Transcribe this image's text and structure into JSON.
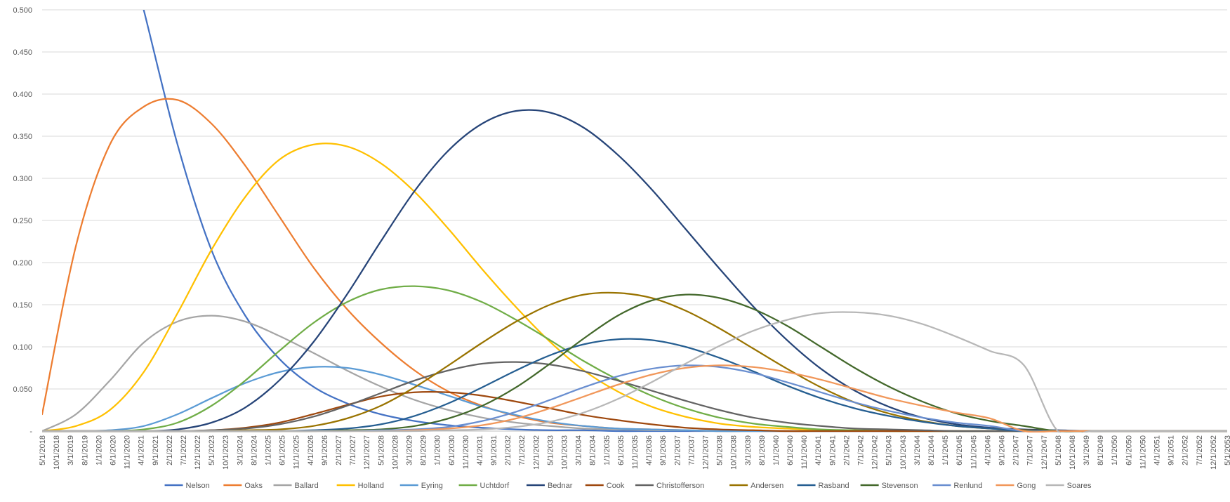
{
  "chart_data": {
    "type": "line",
    "title": "",
    "xlabel": "",
    "ylabel": "",
    "ylim": [
      0,
      0.5
    ],
    "yticks": [
      "-",
      "0.050",
      "0.100",
      "0.150",
      "0.200",
      "0.250",
      "0.300",
      "0.350",
      "0.400",
      "0.450",
      "0.500"
    ],
    "grid": "horizontal",
    "legend": "bottom",
    "xticks": [
      "5/1/2018",
      "10/1/2018",
      "3/1/2019",
      "8/1/2019",
      "1/1/2020",
      "6/1/2020",
      "11/1/2020",
      "4/1/2021",
      "9/1/2021",
      "2/1/2022",
      "7/1/2022",
      "12/1/2022",
      "5/1/2023",
      "10/1/2023",
      "3/1/2024",
      "8/1/2024",
      "1/1/2025",
      "6/1/2025",
      "11/1/2025",
      "4/1/2026",
      "9/1/2026",
      "2/1/2027",
      "7/1/2027",
      "12/1/2027",
      "5/1/2028",
      "10/1/2028",
      "3/1/2029",
      "8/1/2029",
      "1/1/2030",
      "6/1/2030",
      "11/1/2030",
      "4/1/2031",
      "9/1/2031",
      "2/1/2032",
      "7/1/2032",
      "12/1/2032",
      "5/1/2033",
      "10/1/2033",
      "3/1/2034",
      "8/1/2034",
      "1/1/2035",
      "6/1/2035",
      "11/1/2035",
      "4/1/2036",
      "9/1/2036",
      "2/1/2037",
      "7/1/2037",
      "12/1/2037",
      "5/1/2038",
      "10/1/2038",
      "3/1/2039",
      "8/1/2039",
      "1/1/2040",
      "6/1/2040",
      "11/1/2040",
      "4/1/2041",
      "9/1/2041",
      "2/1/2042",
      "7/1/2042",
      "12/1/2042",
      "5/1/2043",
      "10/1/2043",
      "3/1/2044",
      "8/1/2044",
      "1/1/2045",
      "6/1/2045",
      "11/1/2045",
      "4/1/2046",
      "9/1/2046",
      "2/1/2047",
      "7/1/2047",
      "12/1/2047",
      "5/1/2048",
      "10/1/2048",
      "3/1/2049",
      "8/1/2049",
      "1/1/2050",
      "6/1/2050",
      "11/1/2050",
      "4/1/2051",
      "9/1/2051",
      "2/1/2052",
      "7/1/2052",
      "12/1/2052",
      "5/1/2053"
    ],
    "x": [
      "5/1/2018",
      "5/1/2019",
      "5/1/2020",
      "5/1/2021",
      "5/1/2022",
      "5/1/2023",
      "5/1/2024",
      "5/1/2025",
      "5/1/2026",
      "5/1/2027",
      "5/1/2028",
      "5/1/2029",
      "5/1/2030",
      "5/1/2031",
      "5/1/2032",
      "5/1/2033",
      "5/1/2034",
      "5/1/2035",
      "5/1/2036",
      "5/1/2037",
      "5/1/2038",
      "5/1/2039",
      "5/1/2040",
      "5/1/2041",
      "5/1/2042",
      "5/1/2043",
      "5/1/2044",
      "5/1/2045",
      "5/1/2046",
      "5/1/2047",
      "5/1/2048",
      "5/1/2049",
      "5/1/2050",
      "5/1/2051",
      "5/1/2052",
      "5/1/2053"
    ],
    "series": [
      {
        "name": "Nelson",
        "color": "#4472C4",
        "values": [
          null,
          null,
          null,
          0.5,
          0.34,
          0.215,
          0.137,
          0.086,
          0.053,
          0.033,
          0.02,
          0.012,
          0.007,
          0.004,
          0.002,
          0.001,
          0.001,
          0,
          0,
          0,
          0,
          0,
          0,
          0,
          0,
          0,
          0,
          0,
          0,
          0,
          0,
          0,
          0,
          0,
          0,
          0
        ]
      },
      {
        "name": "Oaks",
        "color": "#ED7D31",
        "values": [
          0.02,
          0.22,
          0.34,
          0.385,
          0.393,
          0.365,
          0.315,
          0.255,
          0.195,
          0.145,
          0.105,
          0.072,
          0.047,
          0.03,
          0.018,
          0.01,
          0.006,
          0.003,
          0.002,
          0.001,
          0,
          0,
          0,
          0,
          0,
          0,
          0,
          0,
          0,
          0,
          0,
          0,
          0,
          0,
          0,
          0
        ]
      },
      {
        "name": "Ballard",
        "color": "#A5A5A5",
        "values": [
          0,
          0.02,
          0.06,
          0.105,
          0.13,
          0.137,
          0.13,
          0.113,
          0.093,
          0.072,
          0.053,
          0.037,
          0.025,
          0.016,
          0.01,
          0.006,
          0.003,
          0.002,
          0.001,
          0.001,
          0,
          0,
          0,
          0,
          0,
          0,
          0,
          0,
          0,
          0,
          0,
          0,
          0,
          0,
          0,
          0
        ]
      },
      {
        "name": "Holland",
        "color": "#FFC000",
        "values": [
          0,
          0.006,
          0.025,
          0.07,
          0.14,
          0.215,
          0.278,
          0.322,
          0.34,
          0.338,
          0.318,
          0.284,
          0.24,
          0.192,
          0.147,
          0.106,
          0.072,
          0.047,
          0.029,
          0.017,
          0.009,
          0.005,
          0.003,
          0.001,
          0.001,
          0,
          0,
          0,
          0,
          0,
          0,
          0,
          0,
          0,
          0,
          0
        ]
      },
      {
        "name": "Eyring",
        "color": "#5B9BD5",
        "values": [
          0,
          0,
          0.001,
          0.006,
          0.02,
          0.039,
          0.057,
          0.07,
          0.076,
          0.075,
          0.067,
          0.055,
          0.042,
          0.029,
          0.019,
          0.011,
          0.006,
          0.003,
          0.002,
          0.001,
          0,
          0,
          0,
          0,
          0,
          0,
          0,
          0,
          0,
          0,
          0,
          0,
          0,
          0,
          0,
          0
        ]
      },
      {
        "name": "Uchtdorf",
        "color": "#70AD47",
        "values": [
          0,
          0,
          0,
          0.002,
          0.01,
          0.03,
          0.06,
          0.095,
          0.128,
          0.153,
          0.168,
          0.172,
          0.167,
          0.153,
          0.132,
          0.108,
          0.083,
          0.061,
          0.042,
          0.027,
          0.016,
          0.009,
          0.005,
          0.002,
          0.001,
          0,
          0,
          0,
          0,
          0,
          0,
          0,
          0,
          0,
          0,
          0
        ]
      },
      {
        "name": "Bednar",
        "color": "#264478",
        "values": [
          0,
          0,
          0,
          0,
          0.002,
          0.01,
          0.028,
          0.06,
          0.105,
          0.162,
          0.225,
          0.285,
          0.333,
          0.365,
          0.38,
          0.378,
          0.36,
          0.328,
          0.287,
          0.24,
          0.193,
          0.148,
          0.108,
          0.074,
          0.048,
          0.029,
          0.016,
          0.008,
          0.004,
          0.002,
          0.001,
          0,
          0,
          0,
          0,
          0
        ]
      },
      {
        "name": "Cook",
        "color": "#9E480E",
        "values": [
          0,
          0,
          0,
          0,
          0,
          0.001,
          0.004,
          0.01,
          0.02,
          0.031,
          0.041,
          0.046,
          0.046,
          0.042,
          0.035,
          0.027,
          0.019,
          0.013,
          0.008,
          0.004,
          0.002,
          0.001,
          0,
          0,
          0,
          0,
          0,
          0,
          0,
          0,
          0,
          0,
          0,
          0,
          0,
          0
        ]
      },
      {
        "name": "Christofferson",
        "color": "#636363",
        "values": [
          0,
          0,
          0,
          0,
          0,
          0.001,
          0.003,
          0.008,
          0.017,
          0.03,
          0.045,
          0.06,
          0.072,
          0.08,
          0.082,
          0.079,
          0.071,
          0.06,
          0.048,
          0.036,
          0.025,
          0.016,
          0.01,
          0.006,
          0.003,
          0.002,
          0.001,
          0,
          0,
          0,
          0,
          0,
          0,
          0,
          0,
          0
        ]
      },
      {
        "name": "Andersen",
        "color": "#997300",
        "values": [
          0,
          0,
          0,
          0,
          0,
          0,
          0.001,
          0.002,
          0.006,
          0.015,
          0.03,
          0.052,
          0.078,
          0.105,
          0.13,
          0.15,
          0.162,
          0.164,
          0.158,
          0.143,
          0.122,
          0.098,
          0.074,
          0.052,
          0.034,
          0.021,
          0.012,
          0.006,
          0.003,
          0.001,
          0,
          0,
          0,
          0,
          0,
          0
        ]
      },
      {
        "name": "Rasband",
        "color": "#255E91",
        "values": [
          0,
          0,
          0,
          0,
          0,
          0,
          0,
          0,
          0.001,
          0.003,
          0.008,
          0.018,
          0.033,
          0.052,
          0.072,
          0.09,
          0.103,
          0.109,
          0.108,
          0.1,
          0.087,
          0.071,
          0.054,
          0.039,
          0.027,
          0.018,
          0.011,
          0.006,
          0.003,
          0,
          0,
          0,
          0,
          0,
          0,
          0
        ]
      },
      {
        "name": "Stevenson",
        "color": "#43682B",
        "values": [
          0,
          0,
          0,
          0,
          0,
          0,
          0,
          0,
          0,
          0.001,
          0.002,
          0.006,
          0.015,
          0.03,
          0.052,
          0.08,
          0.11,
          0.137,
          0.155,
          0.162,
          0.158,
          0.145,
          0.125,
          0.1,
          0.075,
          0.053,
          0.035,
          0.021,
          0.012,
          0.006,
          0,
          0,
          0,
          0,
          0,
          0
        ]
      },
      {
        "name": "Renlund",
        "color": "#698ED0",
        "values": [
          0,
          0,
          0,
          0,
          0,
          0,
          0,
          0,
          0,
          0,
          0.001,
          0.002,
          0.005,
          0.012,
          0.023,
          0.037,
          0.052,
          0.065,
          0.074,
          0.078,
          0.076,
          0.069,
          0.058,
          0.046,
          0.034,
          0.024,
          0.016,
          0.01,
          0.006,
          0,
          0,
          0,
          0,
          0,
          0,
          0
        ]
      },
      {
        "name": "Gong",
        "color": "#F1975A",
        "values": [
          0,
          0,
          0,
          0,
          0,
          0,
          0,
          0,
          0,
          0,
          0,
          0.001,
          0.003,
          0.007,
          0.015,
          0.027,
          0.041,
          0.055,
          0.067,
          0.075,
          0.078,
          0.076,
          0.07,
          0.061,
          0.05,
          0.039,
          0.03,
          0.022,
          0.015,
          0,
          0,
          0,
          0,
          0,
          0,
          0
        ]
      },
      {
        "name": "Soares",
        "color": "#B7B7B7",
        "values": [
          0,
          0,
          0,
          0,
          0,
          0,
          0,
          0,
          0,
          0,
          0,
          0,
          0.001,
          0.002,
          0.005,
          0.011,
          0.022,
          0.038,
          0.058,
          0.08,
          0.101,
          0.119,
          0.132,
          0.14,
          0.141,
          0.137,
          0.127,
          0.112,
          0.095,
          0.078,
          0,
          0,
          0,
          0,
          0,
          0
        ]
      }
    ]
  }
}
